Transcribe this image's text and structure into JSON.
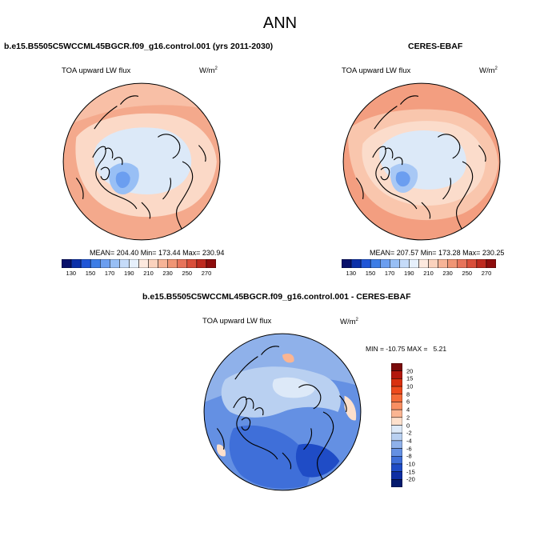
{
  "title": "ANN",
  "model_label": "b.e15.B5505C5WCCML45BGCR.f09_g16.control.001 (yrs 2011-2030)",
  "obs_label": "CERES-EBAF",
  "diff_label": "b.e15.B5505C5WCCML45BGCR.f09_g16.control.001 - CERES-EBAF",
  "variable_name": "TOA upward LW flux",
  "units_base": "W/m",
  "units_exp": "2",
  "panels": {
    "model": {
      "stats": "MEAN= 204.40  Min= 173.44  Max= 230.94"
    },
    "obs": {
      "stats": "MEAN= 207.57  Min= 173.28  Max= 230.25"
    },
    "diff": {
      "stats": "MIN = -10.75 MAX =   5.21"
    }
  },
  "colorbar_abs": {
    "ticks": [
      "130",
      "150",
      "170",
      "190",
      "210",
      "230",
      "250",
      "270"
    ],
    "colors": [
      "#08106b",
      "#0b2fa8",
      "#1f55d6",
      "#3d7de6",
      "#6b9ef0",
      "#98bff5",
      "#c5dbf9",
      "#e6f0fc",
      "#fde9de",
      "#fbd2bd",
      "#f7b497",
      "#f09575",
      "#e7735a",
      "#d94e3a",
      "#bd2a1f",
      "#8e0d0d"
    ]
  },
  "colorbar_diff": {
    "ticks": [
      "20",
      "15",
      "10",
      "8",
      "6",
      "4",
      "2",
      "0",
      "-2",
      "-4",
      "-6",
      "-8",
      "-10",
      "-15",
      "-20"
    ],
    "colors": [
      "#7a0b0b",
      "#b3180e",
      "#d9300f",
      "#ee4a1c",
      "#f56b38",
      "#f98f62",
      "#fbb592",
      "#fde0cc",
      "#dde9f8",
      "#b9d0f1",
      "#8fb1ea",
      "#6490e3",
      "#3f6fd9",
      "#1f4cc6",
      "#0e2ea3",
      "#051a6e"
    ]
  }
}
